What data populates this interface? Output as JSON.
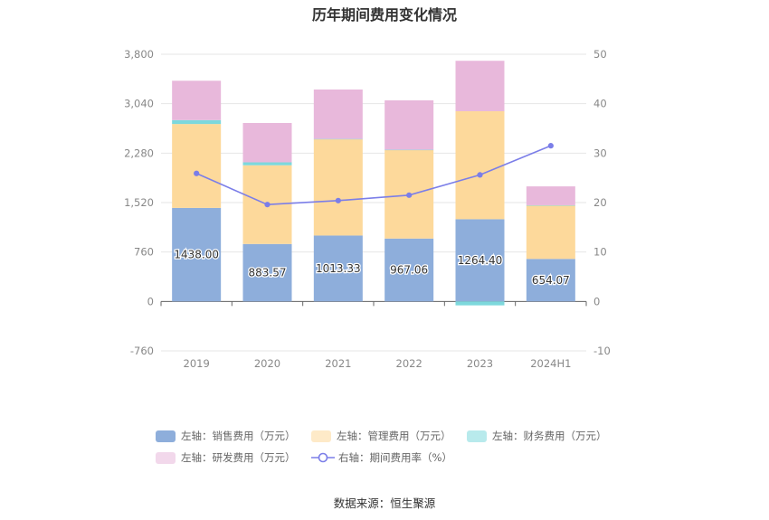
{
  "chart_data": {
    "type": "bar",
    "title": "历年期间费用变化情况",
    "categories": [
      "2019",
      "2020",
      "2021",
      "2022",
      "2023",
      "2024H1"
    ],
    "stacked": true,
    "left_axis": {
      "ticks": [
        "3,800",
        "3,040",
        "2,280",
        "1,520",
        "760",
        "0",
        "-760"
      ],
      "ylim": [
        -760,
        3800
      ]
    },
    "right_axis": {
      "ticks": [
        "50",
        "40",
        "30",
        "20",
        "10",
        "0",
        "-10"
      ],
      "ylim": [
        -10,
        50
      ]
    },
    "series": [
      {
        "name": "左轴：销售费用（万元）",
        "axis": "left",
        "color": "#8eaedb",
        "values": [
          1438.0,
          883.57,
          1013.33,
          967.06,
          1264.4,
          654.07
        ],
        "labels": [
          "1438.00",
          "883.57",
          "1013.33",
          "967.06",
          "1264.40",
          "654.07"
        ]
      },
      {
        "name": "左轴：管理费用（万元）",
        "axis": "left",
        "color": "#fdd99b",
        "values": [
          1290,
          1210,
          1480,
          1360,
          1660,
          820
        ]
      },
      {
        "name": "左轴：财务费用（万元）",
        "axis": "left",
        "color": "#7dd8dc",
        "values": [
          60,
          45,
          5,
          5,
          -60,
          5
        ]
      },
      {
        "name": "左轴：研发费用（万元）",
        "axis": "left",
        "color": "#e8b8db",
        "values": [
          605,
          605,
          760,
          760,
          775,
          290
        ]
      },
      {
        "name": "右轴：期间费用率（%）",
        "axis": "right",
        "type": "line",
        "color": "#7b7ee8",
        "values": [
          25.9,
          19.6,
          20.4,
          21.5,
          25.6,
          31.5
        ]
      }
    ],
    "grid": true,
    "legend_position": "bottom"
  },
  "source": "数据来源：恒生聚源"
}
